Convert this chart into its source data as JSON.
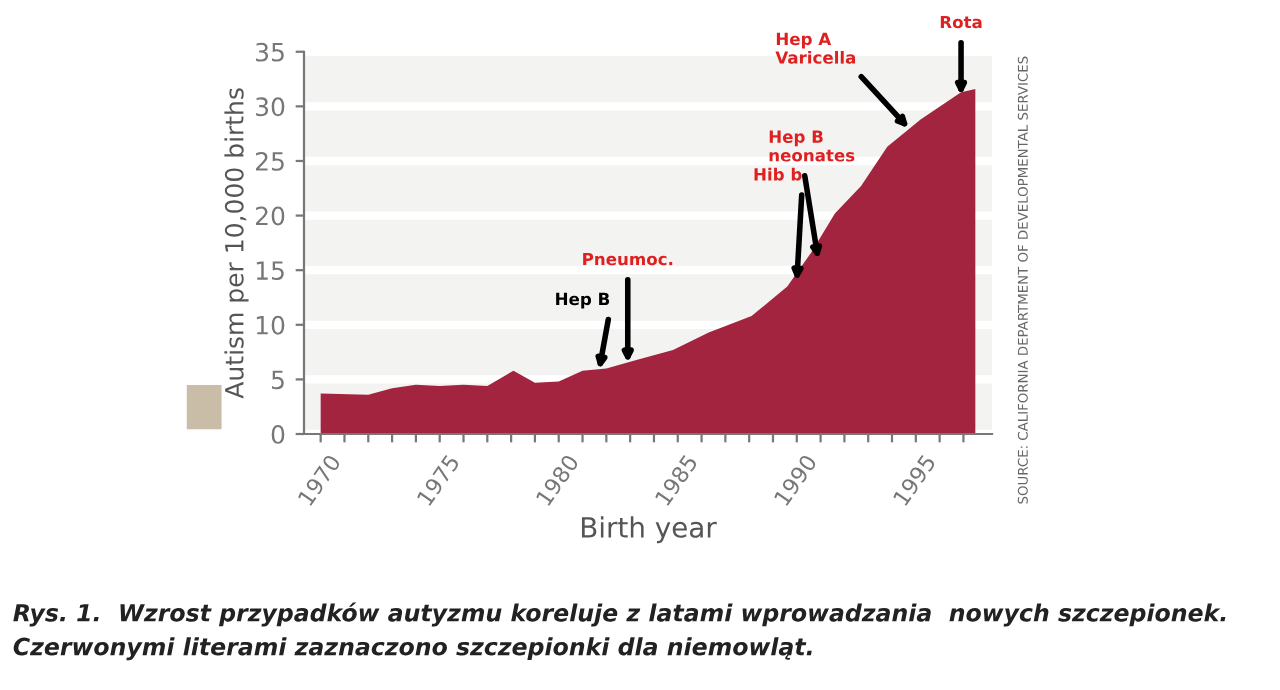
{
  "chart_data": {
    "type": "area",
    "xlabel": "Birth year",
    "ylabel": "Autism per 10,000 births",
    "x": [
      1970,
      1972,
      1973,
      1974,
      1975,
      1976,
      1977,
      1978.1,
      1979,
      1980,
      1981,
      1982,
      1983.3,
      1984.8,
      1986.3,
      1988.1,
      1989.6,
      1990.6,
      1991.6,
      1992.7,
      1993.8,
      1995.2,
      1996.9,
      1997.5
    ],
    "series": [
      {
        "color": "#a3243f",
        "values": [
          3.7,
          3.6,
          4.2,
          4.5,
          4.4,
          4.5,
          4.4,
          5.8,
          4.7,
          4.8,
          5.8,
          6.0,
          6.8,
          7.7,
          9.3,
          10.8,
          13.5,
          16.6,
          20.2,
          22.7,
          26.3,
          28.8,
          31.3,
          31.6
        ]
      }
    ],
    "xlim": [
      1969.3,
      1998.2
    ],
    "ylim": [
      0,
      35
    ],
    "xticks": [
      1970,
      {
        "value": 1971,
        "label": null
      },
      {
        "value": 1972,
        "label": null
      },
      {
        "value": 1973,
        "label": null
      },
      {
        "value": 1974,
        "label": null
      },
      1975,
      {
        "value": 1976,
        "label": null
      },
      {
        "value": 1977,
        "label": null
      },
      {
        "value": 1978,
        "label": null
      },
      {
        "value": 1979,
        "label": null
      },
      1980,
      {
        "value": 1981,
        "label": null
      },
      {
        "value": 1982,
        "label": null
      },
      {
        "value": 1983,
        "label": null
      },
      {
        "value": 1984,
        "label": null
      },
      1985,
      {
        "value": 1986,
        "label": null
      },
      {
        "value": 1987,
        "label": null
      },
      {
        "value": 1988,
        "label": null
      },
      {
        "value": 1989,
        "label": null
      },
      1990,
      {
        "value": 1991,
        "label": null
      },
      {
        "value": 1992,
        "label": null
      },
      {
        "value": 1993,
        "label": null
      },
      {
        "value": 1994,
        "label": null
      },
      1995,
      {
        "value": 1996,
        "label": null
      },
      {
        "value": 1997,
        "label": null
      }
    ],
    "yticks": [
      0,
      5,
      10,
      15,
      20,
      25,
      30,
      35
    ],
    "grid": "y",
    "legend": false,
    "annotations": [
      {
        "text": "Hep B",
        "x": 1981.7,
        "y": 5.9
      },
      {
        "text": "Pneumoc.",
        "x": 1982.9,
        "y": 6.5
      },
      {
        "text": "Hib b",
        "x": 1990.0,
        "y": 14.0
      },
      {
        "text": "Hep B\nneonates",
        "x": 1990.9,
        "y": 16.0
      },
      {
        "text": "Hep A\nVaricella",
        "x": 1994.7,
        "y": 28.0
      },
      {
        "text": "Rota",
        "x": 1996.9,
        "y": 31.0
      },
      "SOURCE: CALIFORNIA DEPARTMENT OF DEVELOPMENTAL SERVICES",
      "Rys. 1.  Wzrost przypadków autyzmu koreluje z latami wprowadzania  nowych szczepionek.\nCzerwonymi literami zaznaczono szczepionki dla niemowląt."
    ]
  }
}
